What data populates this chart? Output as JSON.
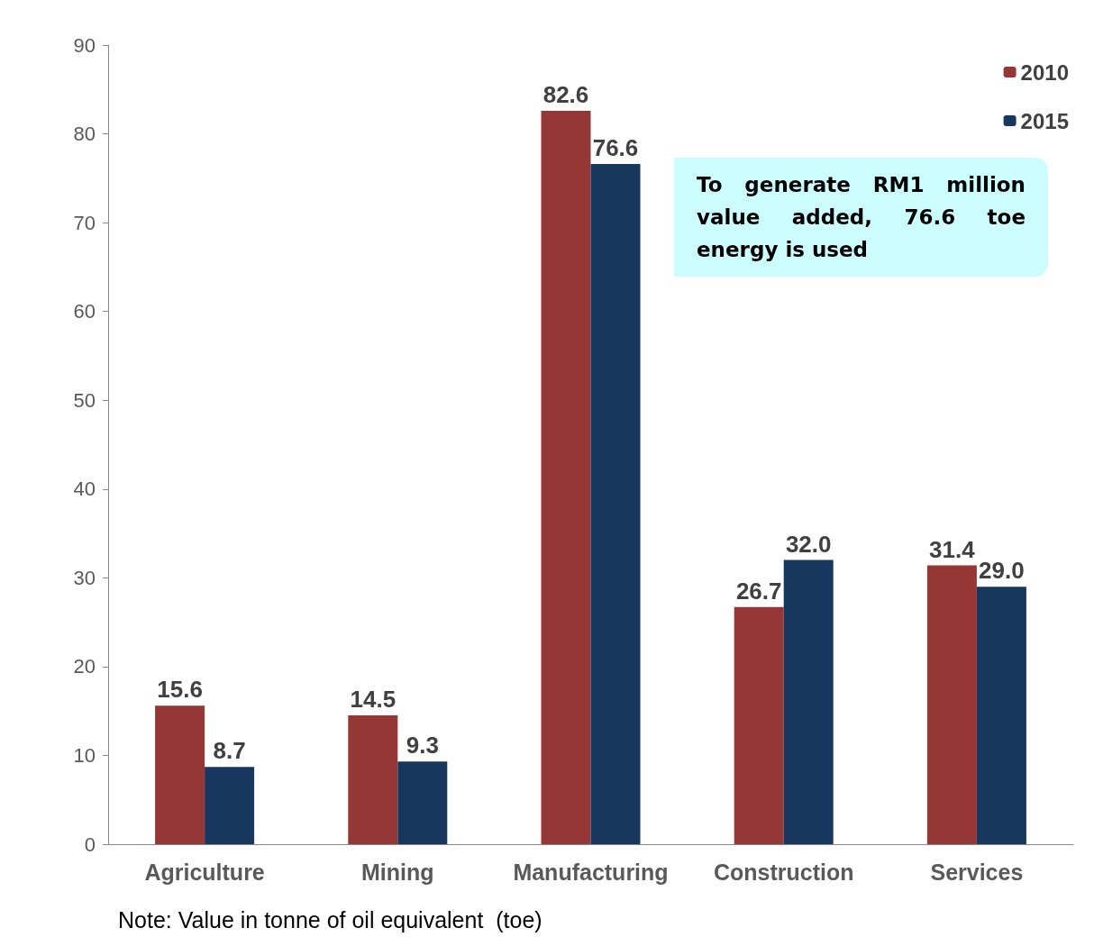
{
  "chart_data": {
    "type": "bar",
    "categories": [
      "Agriculture",
      "Mining",
      "Manufacturing",
      "Construction",
      "Services"
    ],
    "series": [
      {
        "name": "2010",
        "color": "#953735",
        "values": [
          15.6,
          14.5,
          82.6,
          26.7,
          31.4
        ],
        "value_labels": [
          "15.6",
          "14.5",
          "82.6",
          "26.7",
          "31.4"
        ]
      },
      {
        "name": "2015",
        "color": "#17375e",
        "values": [
          8.7,
          9.3,
          76.6,
          32.0,
          29.0
        ],
        "value_labels": [
          "8.7",
          "9.3",
          "76.6",
          "32.0",
          "29.0"
        ]
      }
    ],
    "ylim": [
      0,
      90
    ],
    "yticks": [
      0,
      10,
      20,
      30,
      40,
      50,
      60,
      70,
      80,
      90
    ],
    "grid": false,
    "legend": "top right",
    "annotations": [
      "To generate RM1 million value added, 76.6 toe energy is used",
      "Note: Value in tonne of oil equivalent  (toe)"
    ]
  }
}
